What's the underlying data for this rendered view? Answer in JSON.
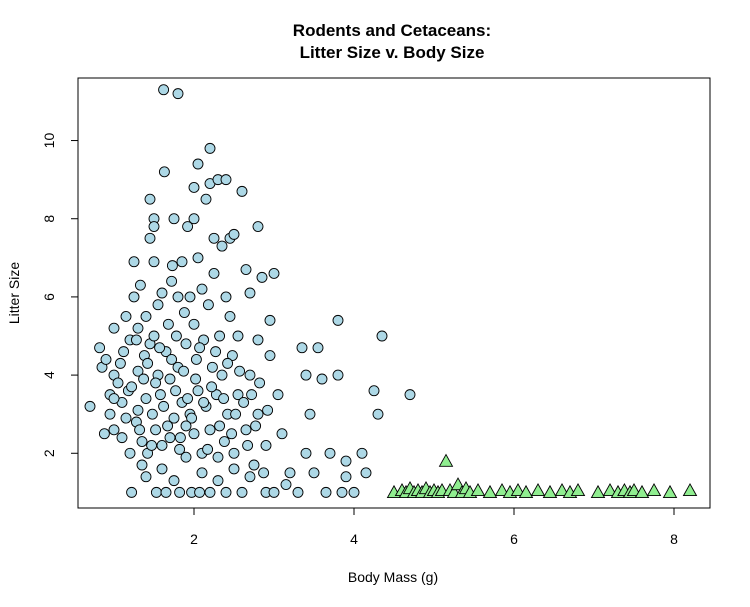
{
  "chart_data": {
    "type": "scatter",
    "title": "Rodents and Cetaceans:",
    "subtitle": "Litter Size v. Body Size",
    "xlabel": "Body Mass (g)",
    "ylabel": "Litter Size",
    "xlim": [
      0.55,
      8.45
    ],
    "ylim": [
      0.6,
      11.6
    ],
    "xticks": [
      2,
      4,
      6,
      8
    ],
    "yticks": [
      2,
      4,
      6,
      8,
      10
    ],
    "grid": false,
    "legend": "none",
    "series": [
      {
        "marker": "circle",
        "color": "#add8e6",
        "points": [
          [
            0.7,
            3.2
          ],
          [
            0.82,
            4.7
          ],
          [
            0.85,
            4.2
          ],
          [
            0.9,
            4.4
          ],
          [
            0.88,
            2.5
          ],
          [
            0.95,
            3.0
          ],
          [
            0.95,
            3.5
          ],
          [
            1.0,
            4.0
          ],
          [
            1.0,
            2.6
          ],
          [
            1.0,
            5.2
          ],
          [
            1.05,
            3.8
          ],
          [
            1.1,
            3.3
          ],
          [
            1.1,
            2.4
          ],
          [
            1.12,
            4.6
          ],
          [
            1.15,
            5.5
          ],
          [
            1.18,
            3.6
          ],
          [
            1.2,
            2.0
          ],
          [
            1.2,
            4.9
          ],
          [
            1.22,
            1.0
          ],
          [
            1.25,
            6.0
          ],
          [
            1.25,
            6.9
          ],
          [
            1.28,
            2.8
          ],
          [
            1.3,
            4.1
          ],
          [
            1.3,
            5.2
          ],
          [
            1.3,
            3.1
          ],
          [
            1.33,
            6.3
          ],
          [
            1.35,
            2.3
          ],
          [
            1.35,
            1.7
          ],
          [
            1.38,
            4.5
          ],
          [
            1.4,
            5.5
          ],
          [
            1.4,
            3.4
          ],
          [
            1.42,
            2.0
          ],
          [
            1.45,
            7.5
          ],
          [
            1.45,
            8.5
          ],
          [
            1.45,
            4.8
          ],
          [
            1.48,
            3.0
          ],
          [
            1.5,
            8.0
          ],
          [
            1.5,
            7.8
          ],
          [
            1.5,
            6.9
          ],
          [
            1.5,
            5.0
          ],
          [
            1.52,
            2.6
          ],
          [
            1.53,
            1.0
          ],
          [
            1.55,
            4.0
          ],
          [
            1.55,
            5.8
          ],
          [
            1.58,
            3.5
          ],
          [
            1.6,
            2.2
          ],
          [
            1.6,
            6.1
          ],
          [
            1.62,
            11.3
          ],
          [
            1.63,
            9.2
          ],
          [
            1.65,
            1.0
          ],
          [
            1.65,
            4.6
          ],
          [
            1.68,
            5.3
          ],
          [
            1.7,
            3.9
          ],
          [
            1.72,
            6.4
          ],
          [
            1.73,
            6.8
          ],
          [
            1.75,
            1.3
          ],
          [
            1.75,
            2.9
          ],
          [
            1.75,
            8.0
          ],
          [
            1.78,
            5.0
          ],
          [
            1.8,
            11.2
          ],
          [
            1.8,
            4.2
          ],
          [
            1.8,
            6.0
          ],
          [
            1.82,
            1.0
          ],
          [
            1.83,
            2.4
          ],
          [
            1.85,
            3.3
          ],
          [
            1.85,
            6.9
          ],
          [
            1.88,
            5.6
          ],
          [
            1.9,
            1.9
          ],
          [
            1.9,
            4.8
          ],
          [
            1.92,
            7.8
          ],
          [
            1.95,
            3.0
          ],
          [
            1.95,
            6.0
          ],
          [
            1.97,
            1.0
          ],
          [
            2.0,
            8.8
          ],
          [
            2.0,
            8.0
          ],
          [
            2.0,
            5.3
          ],
          [
            2.0,
            2.5
          ],
          [
            2.03,
            4.4
          ],
          [
            2.05,
            9.4
          ],
          [
            2.05,
            7.0
          ],
          [
            2.05,
            3.6
          ],
          [
            2.07,
            1.0
          ],
          [
            2.1,
            6.2
          ],
          [
            2.1,
            2.0
          ],
          [
            2.12,
            4.9
          ],
          [
            2.15,
            8.5
          ],
          [
            2.15,
            3.2
          ],
          [
            2.18,
            5.8
          ],
          [
            2.2,
            9.8
          ],
          [
            2.2,
            8.9
          ],
          [
            2.2,
            1.0
          ],
          [
            2.2,
            2.6
          ],
          [
            2.23,
            4.2
          ],
          [
            2.25,
            7.5
          ],
          [
            2.25,
            6.6
          ],
          [
            2.28,
            3.5
          ],
          [
            2.3,
            9.0
          ],
          [
            2.3,
            1.9
          ],
          [
            2.32,
            5.0
          ],
          [
            2.35,
            7.3
          ],
          [
            2.35,
            4.0
          ],
          [
            2.38,
            2.3
          ],
          [
            2.4,
            9.0
          ],
          [
            2.4,
            6.0
          ],
          [
            2.4,
            1.0
          ],
          [
            2.42,
            3.0
          ],
          [
            2.45,
            7.5
          ],
          [
            2.45,
            5.5
          ],
          [
            2.48,
            4.5
          ],
          [
            2.5,
            7.6
          ],
          [
            2.5,
            2.0
          ],
          [
            2.55,
            5.0
          ],
          [
            2.55,
            3.5
          ],
          [
            2.6,
            8.7
          ],
          [
            2.6,
            1.0
          ],
          [
            2.65,
            6.7
          ],
          [
            2.65,
            2.6
          ],
          [
            2.7,
            4.0
          ],
          [
            2.7,
            6.1
          ],
          [
            2.75,
            1.7
          ],
          [
            2.8,
            7.8
          ],
          [
            2.8,
            4.9
          ],
          [
            2.8,
            3.0
          ],
          [
            2.85,
            6.5
          ],
          [
            2.9,
            1.0
          ],
          [
            2.9,
            2.2
          ],
          [
            2.95,
            4.5
          ],
          [
            2.95,
            5.4
          ],
          [
            3.0,
            6.6
          ],
          [
            3.0,
            1.0
          ],
          [
            3.05,
            3.5
          ],
          [
            3.1,
            2.5
          ],
          [
            3.15,
            1.2
          ],
          [
            3.2,
            1.5
          ],
          [
            3.3,
            1.0
          ],
          [
            3.35,
            4.7
          ],
          [
            3.4,
            4.0
          ],
          [
            3.4,
            2.0
          ],
          [
            3.45,
            3.0
          ],
          [
            3.5,
            1.5
          ],
          [
            3.55,
            4.7
          ],
          [
            3.6,
            3.9
          ],
          [
            3.65,
            1.0
          ],
          [
            3.7,
            2.0
          ],
          [
            3.8,
            5.4
          ],
          [
            3.8,
            4.0
          ],
          [
            3.85,
            1.0
          ],
          [
            3.9,
            1.8
          ],
          [
            3.9,
            1.4
          ],
          [
            4.0,
            1.0
          ],
          [
            4.1,
            2.0
          ],
          [
            4.15,
            1.5
          ],
          [
            4.25,
            3.6
          ],
          [
            4.3,
            3.0
          ],
          [
            4.35,
            5.0
          ],
          [
            4.7,
            3.5
          ],
          [
            1.0,
            3.4
          ],
          [
            1.08,
            4.3
          ],
          [
            1.15,
            2.9
          ],
          [
            1.22,
            3.7
          ],
          [
            1.28,
            4.9
          ],
          [
            1.32,
            2.6
          ],
          [
            1.37,
            3.9
          ],
          [
            1.42,
            4.3
          ],
          [
            1.47,
            2.2
          ],
          [
            1.52,
            3.8
          ],
          [
            1.57,
            4.7
          ],
          [
            1.62,
            3.2
          ],
          [
            1.67,
            2.7
          ],
          [
            1.72,
            4.4
          ],
          [
            1.77,
            3.6
          ],
          [
            1.82,
            2.1
          ],
          [
            1.87,
            4.1
          ],
          [
            1.92,
            3.4
          ],
          [
            1.97,
            2.9
          ],
          [
            2.02,
            3.9
          ],
          [
            2.07,
            4.7
          ],
          [
            2.12,
            3.3
          ],
          [
            2.17,
            2.1
          ],
          [
            2.22,
            3.7
          ],
          [
            2.27,
            4.6
          ],
          [
            2.32,
            2.7
          ],
          [
            2.37,
            3.4
          ],
          [
            2.42,
            4.3
          ],
          [
            2.47,
            2.5
          ],
          [
            2.52,
            3.0
          ],
          [
            2.57,
            4.1
          ],
          [
            2.62,
            3.3
          ],
          [
            2.67,
            2.2
          ],
          [
            2.72,
            3.5
          ],
          [
            2.77,
            2.7
          ],
          [
            2.82,
            3.8
          ],
          [
            2.87,
            1.5
          ],
          [
            2.92,
            3.1
          ],
          [
            1.4,
            1.4
          ],
          [
            1.6,
            1.6
          ],
          [
            1.7,
            2.4
          ],
          [
            1.9,
            2.7
          ],
          [
            2.1,
            1.5
          ],
          [
            2.3,
            1.3
          ],
          [
            2.5,
            1.6
          ],
          [
            2.7,
            1.4
          ]
        ]
      },
      {
        "marker": "triangle",
        "color": "#90ee90",
        "points": [
          [
            4.5,
            1.0
          ],
          [
            4.6,
            1.05
          ],
          [
            4.65,
            1.0
          ],
          [
            4.7,
            1.1
          ],
          [
            4.75,
            1.0
          ],
          [
            4.8,
            1.05
          ],
          [
            4.85,
            1.0
          ],
          [
            4.9,
            1.1
          ],
          [
            4.95,
            1.0
          ],
          [
            5.0,
            1.05
          ],
          [
            5.05,
            1.0
          ],
          [
            5.1,
            1.05
          ],
          [
            5.15,
            1.8
          ],
          [
            5.2,
            1.05
          ],
          [
            5.25,
            1.0
          ],
          [
            5.3,
            1.2
          ],
          [
            5.35,
            1.0
          ],
          [
            5.4,
            1.1
          ],
          [
            5.45,
            1.0
          ],
          [
            5.55,
            1.05
          ],
          [
            5.7,
            1.0
          ],
          [
            5.85,
            1.05
          ],
          [
            5.95,
            1.0
          ],
          [
            6.05,
            1.05
          ],
          [
            6.15,
            1.0
          ],
          [
            6.3,
            1.05
          ],
          [
            6.45,
            1.0
          ],
          [
            6.6,
            1.05
          ],
          [
            6.7,
            1.0
          ],
          [
            6.8,
            1.05
          ],
          [
            7.05,
            1.0
          ],
          [
            7.2,
            1.05
          ],
          [
            7.3,
            1.0
          ],
          [
            7.38,
            1.05
          ],
          [
            7.45,
            1.0
          ],
          [
            7.5,
            1.05
          ],
          [
            7.6,
            1.0
          ],
          [
            7.75,
            1.05
          ],
          [
            7.95,
            1.0
          ],
          [
            8.2,
            1.05
          ]
        ]
      }
    ]
  }
}
